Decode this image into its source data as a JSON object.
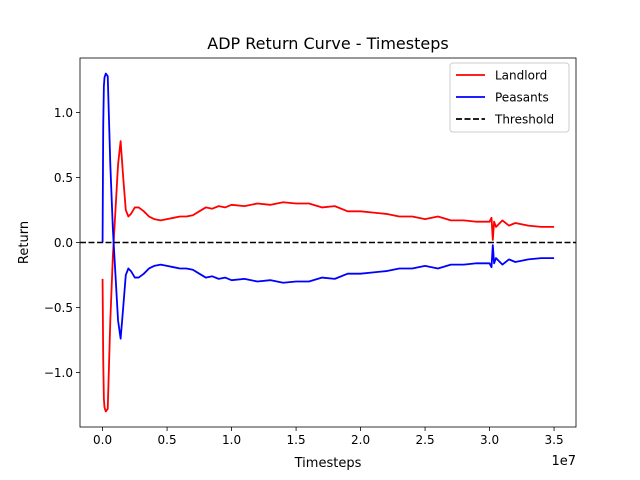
{
  "chart_data": {
    "type": "line",
    "title": "ADP Return Curve - Timesteps",
    "xlabel": "Timesteps",
    "ylabel": "Return",
    "x_offset_label": "1e7",
    "xlim": [
      -1750000,
      36700000
    ],
    "ylim": [
      -1.42,
      1.42
    ],
    "x_ticks": [
      0,
      5000000,
      10000000,
      15000000,
      20000000,
      25000000,
      30000000,
      35000000
    ],
    "x_tick_labels": [
      "0.0",
      "0.5",
      "1.0",
      "1.5",
      "2.0",
      "2.5",
      "3.0",
      "3.5"
    ],
    "y_ticks": [
      -1.0,
      -0.5,
      0.0,
      0.5,
      1.0
    ],
    "y_tick_labels": [
      "−1.0",
      "−0.5",
      "0.0",
      "0.5",
      "1.0"
    ],
    "grid": false,
    "legend_position": "top-right",
    "series": [
      {
        "name": "Landlord",
        "color": "#ff0000",
        "style": "solid",
        "x": [
          0,
          50000,
          100000,
          150000,
          250000,
          400000,
          600000,
          800000,
          1000000,
          1200000,
          1400000,
          1600000,
          1800000,
          2000000,
          2200000,
          2500000,
          2800000,
          3200000,
          3600000,
          4000000,
          4500000,
          5000000,
          5500000,
          6000000,
          6500000,
          7000000,
          7500000,
          8000000,
          8500000,
          9000000,
          9500000,
          10000000,
          11000000,
          12000000,
          13000000,
          14000000,
          15000000,
          16000000,
          17000000,
          18000000,
          19000000,
          20000000,
          21000000,
          22000000,
          23000000,
          24000000,
          25000000,
          26000000,
          27000000,
          28000000,
          29000000,
          30000000,
          30150000,
          30250000,
          30350000,
          30500000,
          31000000,
          31500000,
          32000000,
          33000000,
          34000000,
          35000000
        ],
        "y": [
          -0.28,
          -0.9,
          -1.2,
          -1.27,
          -1.3,
          -1.28,
          -0.6,
          -0.1,
          0.25,
          0.6,
          0.78,
          0.5,
          0.25,
          0.2,
          0.22,
          0.27,
          0.27,
          0.24,
          0.2,
          0.18,
          0.17,
          0.18,
          0.19,
          0.2,
          0.2,
          0.21,
          0.24,
          0.27,
          0.26,
          0.28,
          0.27,
          0.29,
          0.28,
          0.3,
          0.29,
          0.31,
          0.3,
          0.3,
          0.27,
          0.28,
          0.24,
          0.24,
          0.23,
          0.22,
          0.2,
          0.2,
          0.18,
          0.2,
          0.17,
          0.17,
          0.16,
          0.16,
          0.19,
          0.02,
          0.16,
          0.12,
          0.17,
          0.13,
          0.15,
          0.13,
          0.12,
          0.12
        ]
      },
      {
        "name": "Peasants",
        "color": "#0000ff",
        "style": "solid",
        "x": [
          0,
          50000,
          100000,
          150000,
          250000,
          400000,
          600000,
          800000,
          1000000,
          1200000,
          1400000,
          1600000,
          1800000,
          2000000,
          2200000,
          2500000,
          2800000,
          3200000,
          3600000,
          4000000,
          4500000,
          5000000,
          5500000,
          6000000,
          6500000,
          7000000,
          7500000,
          8000000,
          8500000,
          9000000,
          9500000,
          10000000,
          11000000,
          12000000,
          13000000,
          14000000,
          15000000,
          16000000,
          17000000,
          18000000,
          19000000,
          20000000,
          21000000,
          22000000,
          23000000,
          24000000,
          25000000,
          26000000,
          27000000,
          28000000,
          29000000,
          30000000,
          30150000,
          30250000,
          30350000,
          30500000,
          31000000,
          31500000,
          32000000,
          33000000,
          34000000,
          35000000
        ],
        "y": [
          0.0,
          0.9,
          1.2,
          1.27,
          1.3,
          1.28,
          0.6,
          0.1,
          -0.25,
          -0.6,
          -0.74,
          -0.5,
          -0.25,
          -0.2,
          -0.22,
          -0.27,
          -0.27,
          -0.24,
          -0.2,
          -0.18,
          -0.17,
          -0.18,
          -0.19,
          -0.2,
          -0.2,
          -0.21,
          -0.24,
          -0.27,
          -0.26,
          -0.28,
          -0.27,
          -0.29,
          -0.28,
          -0.3,
          -0.29,
          -0.31,
          -0.3,
          -0.3,
          -0.27,
          -0.28,
          -0.24,
          -0.24,
          -0.23,
          -0.22,
          -0.2,
          -0.2,
          -0.18,
          -0.2,
          -0.17,
          -0.17,
          -0.16,
          -0.16,
          -0.19,
          -0.02,
          -0.16,
          -0.12,
          -0.17,
          -0.13,
          -0.15,
          -0.13,
          -0.12,
          -0.12
        ]
      },
      {
        "name": "Threshold",
        "color": "#000000",
        "style": "dashed",
        "x": [
          -1750000,
          36700000
        ],
        "y": [
          0,
          0
        ]
      }
    ]
  }
}
